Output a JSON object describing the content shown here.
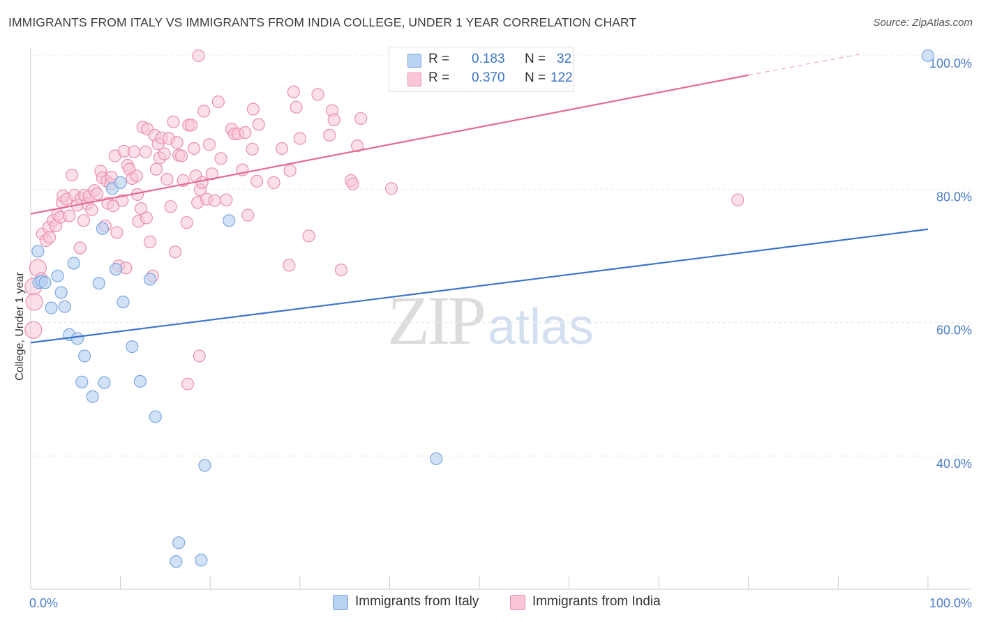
{
  "header": {
    "title": "IMMIGRANTS FROM ITALY VS IMMIGRANTS FROM INDIA COLLEGE, UNDER 1 YEAR CORRELATION CHART",
    "source": "Source: ZipAtlas.com"
  },
  "watermark": {
    "zip": "ZIP",
    "atlas": "atlas"
  },
  "legend": {
    "r_label": "R =",
    "n_label": "N =",
    "italy": {
      "r": "0.183",
      "n": "32"
    },
    "india": {
      "r": "0.370",
      "n": "122"
    }
  },
  "colors": {
    "italy_fill": "#b9d2f3",
    "italy_stroke": "#7aa6e0",
    "italy_line": "#3b74c9",
    "india_fill": "#f8c6d6",
    "india_stroke": "#e98fad",
    "india_line": "#e46a95",
    "grid": "#e6e6e6",
    "axis_text": "#4a7cc7"
  },
  "chart_data": {
    "type": "scatter",
    "title": "IMMIGRANTS FROM ITALY VS IMMIGRANTS FROM INDIA COLLEGE, UNDER 1 YEAR CORRELATION CHART",
    "xlabel": "",
    "ylabel": "College, Under 1 year",
    "xlim": [
      0,
      100
    ],
    "ylim": [
      20,
      102
    ],
    "x_tick_labels": [
      "0.0%",
      "100.0%"
    ],
    "y_ticks": [
      {
        "value": 40,
        "label": "40.0%"
      },
      {
        "value": 60,
        "label": "60.0%"
      },
      {
        "value": 80,
        "label": "80.0%"
      },
      {
        "value": 100,
        "label": "100.0%"
      }
    ],
    "legend_position": "top-center",
    "series": [
      {
        "name": "Immigrants from Italy",
        "r": 0.183,
        "n": 32,
        "trend": {
          "x0": 0,
          "y0": 57.0,
          "x1": 100,
          "y1": 74.0
        },
        "points": [
          [
            0.8,
            70.7
          ],
          [
            0.9,
            66.0
          ],
          [
            1.2,
            66.2
          ],
          [
            1.6,
            66.0
          ],
          [
            2.3,
            62.2
          ],
          [
            3.0,
            67.0
          ],
          [
            3.4,
            64.5
          ],
          [
            3.8,
            62.4
          ],
          [
            4.3,
            58.2
          ],
          [
            4.8,
            68.9
          ],
          [
            5.2,
            57.6
          ],
          [
            6.0,
            55.0
          ],
          [
            5.7,
            51.1
          ],
          [
            6.9,
            48.9
          ],
          [
            7.6,
            65.9
          ],
          [
            8.2,
            51.0
          ],
          [
            9.1,
            80.1
          ],
          [
            9.5,
            68.0
          ],
          [
            10.0,
            81.0
          ],
          [
            10.3,
            63.1
          ],
          [
            11.3,
            56.4
          ],
          [
            12.2,
            51.2
          ],
          [
            13.3,
            66.5
          ],
          [
            13.9,
            45.9
          ],
          [
            8.0,
            74.1
          ],
          [
            22.1,
            75.3
          ],
          [
            16.5,
            27.0
          ],
          [
            16.2,
            24.2
          ],
          [
            19.0,
            24.4
          ],
          [
            19.4,
            38.6
          ],
          [
            45.2,
            39.6
          ],
          [
            100.0,
            100.0
          ]
        ]
      },
      {
        "name": "Immigrants from India",
        "r": 0.37,
        "n": 122,
        "trend": {
          "x0": 0,
          "y0": 76.3,
          "x1": 80,
          "y1": 97.1,
          "dashed_to": {
            "x": 92.6,
            "y": 100.3
          }
        },
        "points": [
          [
            0.3,
            65.4
          ],
          [
            0.4,
            63.1
          ],
          [
            0.3,
            58.9
          ],
          [
            0.8,
            68.2
          ],
          [
            1.2,
            66.6
          ],
          [
            1.3,
            73.3
          ],
          [
            1.7,
            72.3
          ],
          [
            2.0,
            74.3
          ],
          [
            2.1,
            72.8
          ],
          [
            2.5,
            75.3
          ],
          [
            2.8,
            74.5
          ],
          [
            3.0,
            76.2
          ],
          [
            3.3,
            75.8
          ],
          [
            3.5,
            78.0
          ],
          [
            3.6,
            79.0
          ],
          [
            4.0,
            78.5
          ],
          [
            4.3,
            76.0
          ],
          [
            4.6,
            82.1
          ],
          [
            4.9,
            79.1
          ],
          [
            5.2,
            77.6
          ],
          [
            5.5,
            71.2
          ],
          [
            5.6,
            78.6
          ],
          [
            5.9,
            75.3
          ],
          [
            6.0,
            79.1
          ],
          [
            6.3,
            77.8
          ],
          [
            6.5,
            78.9
          ],
          [
            6.8,
            76.9
          ],
          [
            7.1,
            79.8
          ],
          [
            7.4,
            79.3
          ],
          [
            7.8,
            82.7
          ],
          [
            8.0,
            81.7
          ],
          [
            8.3,
            74.5
          ],
          [
            8.5,
            81.2
          ],
          [
            8.6,
            77.9
          ],
          [
            8.9,
            80.8
          ],
          [
            9.0,
            81.8
          ],
          [
            9.2,
            77.5
          ],
          [
            9.4,
            85.0
          ],
          [
            9.6,
            73.5
          ],
          [
            9.8,
            68.5
          ],
          [
            10.2,
            78.3
          ],
          [
            10.4,
            85.7
          ],
          [
            10.6,
            68.2
          ],
          [
            10.8,
            83.6
          ],
          [
            11.0,
            83.0
          ],
          [
            11.3,
            81.6
          ],
          [
            11.5,
            85.6
          ],
          [
            11.8,
            82.0
          ],
          [
            11.9,
            79.2
          ],
          [
            12.0,
            75.2
          ],
          [
            12.3,
            77.1
          ],
          [
            12.5,
            89.3
          ],
          [
            12.8,
            85.6
          ],
          [
            12.9,
            75.7
          ],
          [
            13.0,
            89.0
          ],
          [
            13.3,
            72.1
          ],
          [
            13.6,
            67.0
          ],
          [
            13.8,
            88.1
          ],
          [
            14.0,
            83.0
          ],
          [
            14.2,
            86.8
          ],
          [
            14.4,
            84.7
          ],
          [
            14.6,
            87.7
          ],
          [
            14.9,
            85.3
          ],
          [
            15.2,
            81.5
          ],
          [
            15.4,
            87.6
          ],
          [
            15.6,
            77.4
          ],
          [
            15.9,
            90.1
          ],
          [
            16.1,
            70.6
          ],
          [
            16.3,
            87.0
          ],
          [
            16.5,
            85.1
          ],
          [
            16.8,
            85.0
          ],
          [
            17.0,
            81.3
          ],
          [
            17.4,
            75.0
          ],
          [
            17.6,
            89.6
          ],
          [
            17.9,
            89.6
          ],
          [
            18.2,
            86.1
          ],
          [
            18.4,
            82.0
          ],
          [
            18.6,
            78.0
          ],
          [
            18.9,
            79.9
          ],
          [
            19.1,
            81.0
          ],
          [
            19.3,
            91.7
          ],
          [
            19.6,
            78.5
          ],
          [
            19.9,
            86.7
          ],
          [
            20.2,
            82.3
          ],
          [
            20.5,
            78.3
          ],
          [
            20.9,
            93.1
          ],
          [
            21.2,
            84.6
          ],
          [
            21.8,
            78.4
          ],
          [
            22.4,
            89.0
          ],
          [
            22.7,
            88.3
          ],
          [
            23.1,
            88.3
          ],
          [
            23.6,
            82.9
          ],
          [
            23.9,
            88.5
          ],
          [
            24.2,
            76.1
          ],
          [
            24.7,
            86.0
          ],
          [
            24.8,
            92.0
          ],
          [
            25.2,
            81.2
          ],
          [
            25.4,
            89.7
          ],
          [
            27.1,
            81.0
          ],
          [
            28.0,
            86.1
          ],
          [
            28.8,
            68.6
          ],
          [
            28.9,
            82.8
          ],
          [
            29.3,
            94.6
          ],
          [
            29.6,
            92.3
          ],
          [
            30.0,
            87.6
          ],
          [
            31.0,
            73.0
          ],
          [
            32.0,
            94.2
          ],
          [
            33.3,
            88.1
          ],
          [
            33.6,
            91.8
          ],
          [
            33.8,
            90.4
          ],
          [
            34.6,
            67.9
          ],
          [
            35.7,
            81.3
          ],
          [
            35.9,
            80.8
          ],
          [
            36.4,
            86.5
          ],
          [
            36.8,
            90.6
          ],
          [
            40.2,
            80.1
          ],
          [
            18.8,
            55.0
          ],
          [
            17.5,
            50.8
          ],
          [
            18.7,
            100.0
          ],
          [
            78.8,
            78.4
          ]
        ]
      }
    ]
  },
  "bottom_legend": {
    "italy_label": "Immigrants from Italy",
    "india_label": "Immigrants from India"
  }
}
